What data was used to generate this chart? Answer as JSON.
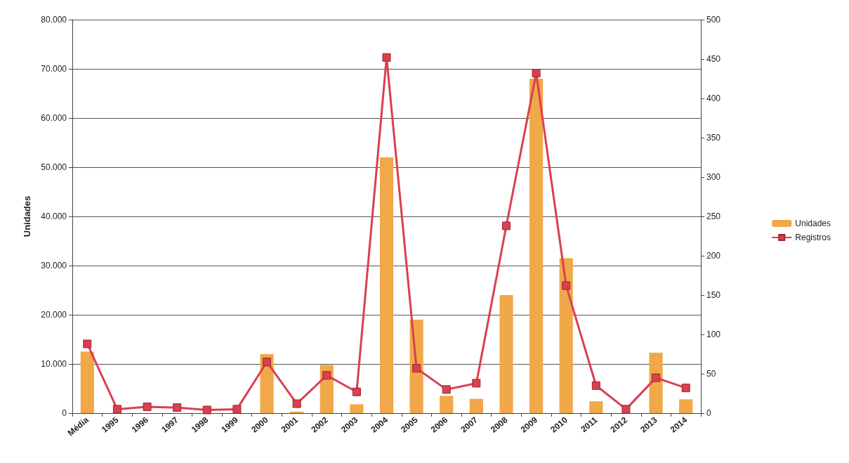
{
  "chart_data": {
    "type": "bar",
    "ylabel": "Unidades",
    "categories": [
      "Média",
      "1995",
      "1996",
      "1997",
      "1998",
      "1999",
      "2000",
      "2001",
      "2002",
      "2003",
      "2004",
      "2005",
      "2006",
      "2007",
      "2008",
      "2009",
      "2010",
      "2011",
      "2012",
      "2013",
      "2014"
    ],
    "series": [
      {
        "name": "Unidades",
        "color": "#f0a848",
        "values": [
          12500,
          0,
          0,
          0,
          0,
          0,
          12000,
          300,
          9800,
          1800,
          52000,
          19000,
          3500,
          2900,
          24000,
          68000,
          31500,
          2400,
          0,
          12300,
          2800
        ]
      },
      {
        "name": "Registros",
        "type": "line",
        "axis": "y2",
        "color": "#d94050",
        "values": [
          88,
          5,
          8,
          7,
          4,
          5,
          65,
          12,
          48,
          27,
          452,
          57,
          30,
          38,
          238,
          432,
          162,
          35,
          5,
          45,
          32
        ]
      }
    ],
    "ylim": [
      0,
      80000
    ],
    "yticks": [
      {
        "value": 0,
        "label": "0"
      },
      {
        "value": 10000,
        "label": "10.000"
      },
      {
        "value": 20000,
        "label": "20.000"
      },
      {
        "value": 30000,
        "label": "30.000"
      },
      {
        "value": 40000,
        "label": "40.000"
      },
      {
        "value": 50000,
        "label": "50.000"
      },
      {
        "value": 60000,
        "label": "60.000"
      },
      {
        "value": 70000,
        "label": "70.000"
      },
      {
        "value": 80000,
        "label": "80.000"
      }
    ],
    "y2lim": [
      0,
      500
    ],
    "y2ticks": [
      0,
      50,
      100,
      150,
      200,
      250,
      300,
      350,
      400,
      450,
      500
    ],
    "grid": "y",
    "legend": "right",
    "marker": "square"
  }
}
